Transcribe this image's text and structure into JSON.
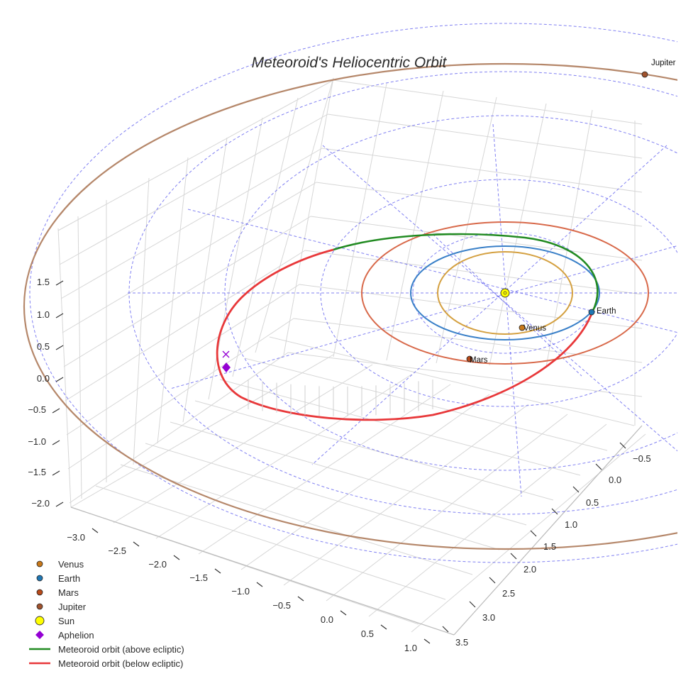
{
  "chart_data": {
    "type": "scatter3d",
    "title": "Meteoroid's Heliocentric Orbit",
    "axes": {
      "z_ticks": [
        "1.5",
        "1.0",
        "0.5",
        "0.0",
        "−0.5",
        "−1.0",
        "−1.5",
        "−2.0"
      ],
      "x_ticks": [
        "−3.0",
        "−2.5",
        "−2.0",
        "−1.5",
        "−1.0",
        "−0.5",
        "0.0",
        "0.5",
        "1.0"
      ],
      "y_ticks": [
        "−0.5",
        "0.0",
        "0.5",
        "1.0",
        "1.5",
        "2.0",
        "2.5",
        "3.0",
        "3.5"
      ],
      "xlim": [
        -3.0,
        1.0
      ],
      "ylim": [
        -0.5,
        3.5
      ],
      "zlim": [
        -2.0,
        1.5
      ],
      "grid": true
    },
    "bodies": [
      {
        "name": "Venus",
        "label": "Venus",
        "color": "#c8781a",
        "orbit_color": "#d4a040",
        "orbit_radius_au": 0.72
      },
      {
        "name": "Earth",
        "label": "Earth",
        "color": "#1f77b4",
        "orbit_color": "#3a80c8",
        "orbit_radius_au": 1.0
      },
      {
        "name": "Mars",
        "label": "Mars",
        "color": "#b84a1a",
        "orbit_color": "#d8694a",
        "orbit_radius_au": 1.52
      },
      {
        "name": "Jupiter",
        "label": "Jupiter",
        "color": "#a0522d",
        "orbit_color": "#b5876a",
        "orbit_radius_au": 5.2
      }
    ],
    "sun": {
      "name": "Sun",
      "color": "#ffff00"
    },
    "aphelion": {
      "name": "Aphelion",
      "color": "#9400d3"
    },
    "meteoroid": {
      "above_label": "Meteoroid orbit (above ecliptic)",
      "below_label": "Meteoroid orbit (below ecliptic)",
      "above_color": "#228b22",
      "below_color": "#e8383a"
    },
    "ecliptic_grid_color": "#5555ee",
    "legend": [
      {
        "label": "Venus",
        "kind": "dot",
        "color": "#c8781a"
      },
      {
        "label": "Earth",
        "kind": "dot",
        "color": "#1f77b4"
      },
      {
        "label": "Mars",
        "kind": "dot",
        "color": "#b84a1a"
      },
      {
        "label": "Jupiter",
        "kind": "dot",
        "color": "#a0522d"
      },
      {
        "label": "Sun",
        "kind": "sun",
        "color": "#ffff00"
      },
      {
        "label": "Aphelion",
        "kind": "diamond",
        "color": "#9400d3"
      },
      {
        "label": "Meteoroid orbit (above ecliptic)",
        "kind": "line",
        "color": "#228b22"
      },
      {
        "label": "Meteoroid orbit (below ecliptic)",
        "kind": "line",
        "color": "#e8383a"
      }
    ]
  }
}
